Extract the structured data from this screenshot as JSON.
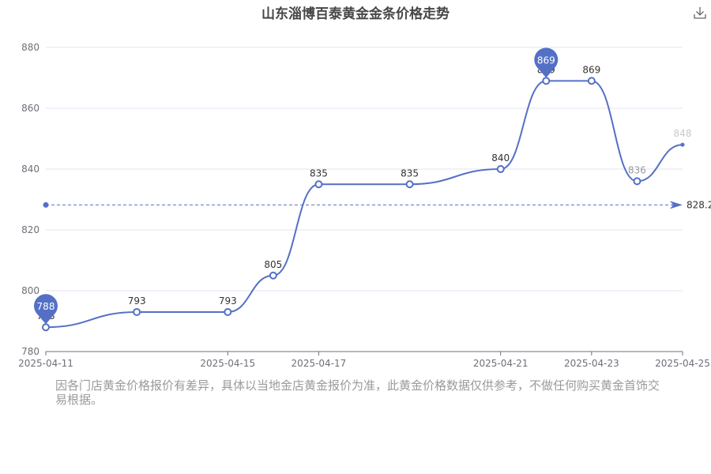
{
  "chart_data": {
    "type": "line",
    "title": "山东淄博百泰黄金金条价格走势",
    "x": [
      "2025-04-11",
      "2025-04-13",
      "2025-04-15",
      "2025-04-16",
      "2025-04-17",
      "2025-04-19",
      "2025-04-21",
      "2025-04-22",
      "2025-04-23",
      "2025-04-24",
      "2025-04-25"
    ],
    "x_tick_labels": [
      "2025-04-11",
      "2025-04-15",
      "2025-04-17",
      "2025-04-21",
      "2025-04-23",
      "2025-04-25"
    ],
    "y_tick_labels": [
      "880",
      "860",
      "840",
      "820",
      "800",
      "780"
    ],
    "series": [
      {
        "values": [
          788,
          793,
          793,
          805,
          835,
          835,
          840,
          869,
          869,
          836,
          848
        ]
      }
    ],
    "ylim": [
      780,
      880
    ],
    "y_ticks": [
      780,
      800,
      820,
      840,
      860,
      880
    ],
    "grid": true,
    "smooth": true,
    "color": "#5470c6",
    "mark_points": [
      {
        "type": "min",
        "label": "788"
      },
      {
        "type": "max",
        "label": "869"
      }
    ],
    "mark_line": {
      "type": "average",
      "value": 828.2,
      "label": "828.2"
    }
  },
  "toolbar": {
    "download_icon": "download-icon"
  },
  "disclaimer": "因各门店黄金价格报价有差异，具体以当地金店黄金报价为准，此黄金价格数据仅供参考，不做任何购买黄金首饰交易根据。"
}
